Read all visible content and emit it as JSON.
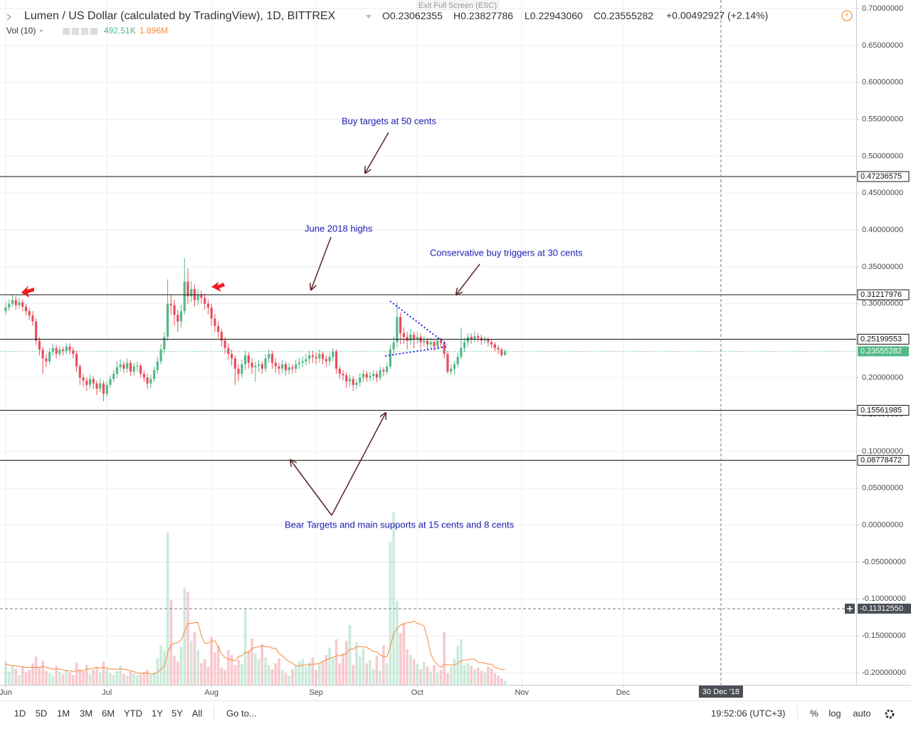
{
  "header": {
    "symbol": "Lumen / US Dollar (calculated by TradingView), 1D, BITTREX",
    "ohlc": [
      {
        "label": "O",
        "value": "0.23062355"
      },
      {
        "label": "H",
        "value": "0.23827786"
      },
      {
        "label": "L",
        "value": "0.22943060"
      },
      {
        "label": "C",
        "value": "0.23555282"
      }
    ],
    "change": "+0.00492927 (+2.14%)",
    "volume_label": "Vol (10)",
    "volume": "492.51K",
    "volume_ma": "1.896M",
    "exit": "Exit Full Screen (ESC)"
  },
  "chart_data": {
    "type": "candlestick",
    "x": [
      0,
      1,
      2,
      3,
      4,
      5,
      6,
      7,
      8,
      9,
      10,
      11,
      12,
      13,
      14,
      15,
      16,
      17,
      18,
      19,
      20,
      21,
      22,
      23,
      24,
      25,
      26,
      27,
      28,
      29,
      30,
      31,
      32,
      33,
      34,
      35,
      36,
      37,
      38,
      39,
      40,
      41,
      42,
      43,
      44,
      45,
      46,
      47,
      48,
      49,
      50,
      51,
      52,
      53,
      54,
      55,
      56,
      57,
      58,
      59,
      60,
      61,
      62,
      63,
      64,
      65,
      66,
      67,
      68,
      69,
      70,
      71,
      72,
      73,
      74,
      75,
      76,
      77,
      78,
      79,
      80,
      81,
      82,
      83,
      84,
      85,
      86,
      87,
      88,
      89,
      90,
      91,
      92,
      93,
      94,
      95,
      96,
      97,
      98,
      99,
      100,
      101,
      102,
      103,
      104,
      105,
      106,
      107,
      108,
      109,
      110,
      111,
      112,
      113,
      114,
      115,
      116,
      117,
      118,
      119,
      120,
      121,
      122,
      123,
      124,
      125,
      126,
      127,
      128,
      129,
      130,
      131,
      132,
      133,
      134,
      135,
      136,
      137,
      138,
      139,
      140,
      141,
      142,
      143,
      144,
      145,
      146,
      147,
      148
    ],
    "open": [
      0.29,
      0.295,
      0.3,
      0.305,
      0.298,
      0.302,
      0.296,
      0.29,
      0.284,
      0.276,
      0.25,
      0.238,
      0.226,
      0.222,
      0.235,
      0.24,
      0.232,
      0.238,
      0.236,
      0.242,
      0.237,
      0.232,
      0.215,
      0.2,
      0.196,
      0.19,
      0.198,
      0.192,
      0.185,
      0.192,
      0.178,
      0.19,
      0.198,
      0.205,
      0.214,
      0.218,
      0.212,
      0.22,
      0.208,
      0.215,
      0.216,
      0.205,
      0.2,
      0.192,
      0.198,
      0.21,
      0.222,
      0.238,
      0.255,
      0.3,
      0.298,
      0.285,
      0.276,
      0.29,
      0.33,
      0.31,
      0.32,
      0.305,
      0.312,
      0.308,
      0.3,
      0.295,
      0.28,
      0.27,
      0.262,
      0.25,
      0.24,
      0.232,
      0.226,
      0.212,
      0.205,
      0.218,
      0.23,
      0.22,
      0.214,
      0.216,
      0.218,
      0.212,
      0.226,
      0.232,
      0.22,
      0.215,
      0.212,
      0.218,
      0.21,
      0.214,
      0.212,
      0.218,
      0.22,
      0.222,
      0.225,
      0.23,
      0.228,
      0.226,
      0.232,
      0.225,
      0.222,
      0.228,
      0.235,
      0.212,
      0.205,
      0.203,
      0.195,
      0.198,
      0.19,
      0.193,
      0.2,
      0.205,
      0.2,
      0.202,
      0.205,
      0.2,
      0.21,
      0.208,
      0.215,
      0.238,
      0.248,
      0.282,
      0.26,
      0.255,
      0.25,
      0.258,
      0.252,
      0.255,
      0.248,
      0.25,
      0.245,
      0.248,
      0.242,
      0.25,
      0.247,
      0.232,
      0.208,
      0.212,
      0.218,
      0.228,
      0.24,
      0.248,
      0.255,
      0.252,
      0.256,
      0.254,
      0.25,
      0.252,
      0.248,
      0.245,
      0.24,
      0.238,
      0.23062355
    ],
    "high": [
      0.302,
      0.306,
      0.312,
      0.31,
      0.308,
      0.306,
      0.3,
      0.294,
      0.29,
      0.28,
      0.255,
      0.242,
      0.232,
      0.24,
      0.246,
      0.244,
      0.243,
      0.242,
      0.247,
      0.246,
      0.241,
      0.236,
      0.218,
      0.205,
      0.2,
      0.204,
      0.202,
      0.196,
      0.198,
      0.196,
      0.195,
      0.203,
      0.21,
      0.222,
      0.225,
      0.222,
      0.226,
      0.224,
      0.22,
      0.222,
      0.219,
      0.21,
      0.205,
      0.204,
      0.215,
      0.228,
      0.245,
      0.262,
      0.333,
      0.312,
      0.305,
      0.292,
      0.298,
      0.362,
      0.348,
      0.33,
      0.326,
      0.32,
      0.318,
      0.314,
      0.306,
      0.3,
      0.286,
      0.276,
      0.266,
      0.255,
      0.246,
      0.238,
      0.23,
      0.218,
      0.224,
      0.236,
      0.234,
      0.226,
      0.222,
      0.224,
      0.222,
      0.232,
      0.238,
      0.236,
      0.226,
      0.22,
      0.224,
      0.222,
      0.22,
      0.218,
      0.224,
      0.226,
      0.228,
      0.232,
      0.236,
      0.236,
      0.234,
      0.238,
      0.236,
      0.23,
      0.234,
      0.24,
      0.238,
      0.216,
      0.21,
      0.207,
      0.204,
      0.202,
      0.198,
      0.206,
      0.21,
      0.209,
      0.208,
      0.21,
      0.209,
      0.215,
      0.214,
      0.22,
      0.244,
      0.256,
      0.302,
      0.288,
      0.268,
      0.262,
      0.266,
      0.262,
      0.262,
      0.26,
      0.256,
      0.254,
      0.254,
      0.252,
      0.255,
      0.254,
      0.25,
      0.236,
      0.218,
      0.222,
      0.234,
      0.268,
      0.254,
      0.26,
      0.26,
      0.262,
      0.26,
      0.258,
      0.256,
      0.255,
      0.252,
      0.248,
      0.244,
      0.24,
      0.23827786
    ],
    "low": [
      0.285,
      0.29,
      0.296,
      0.292,
      0.293,
      0.29,
      0.284,
      0.278,
      0.27,
      0.244,
      0.23,
      0.205,
      0.214,
      0.218,
      0.23,
      0.226,
      0.228,
      0.23,
      0.232,
      0.231,
      0.226,
      0.208,
      0.19,
      0.188,
      0.182,
      0.185,
      0.184,
      0.176,
      0.18,
      0.168,
      0.174,
      0.186,
      0.194,
      0.2,
      0.208,
      0.206,
      0.207,
      0.202,
      0.203,
      0.208,
      0.2,
      0.194,
      0.185,
      0.186,
      0.194,
      0.205,
      0.218,
      0.232,
      0.25,
      0.285,
      0.27,
      0.262,
      0.268,
      0.285,
      0.3,
      0.302,
      0.296,
      0.298,
      0.3,
      0.292,
      0.286,
      0.27,
      0.262,
      0.254,
      0.242,
      0.232,
      0.224,
      0.216,
      0.19,
      0.195,
      0.2,
      0.21,
      0.212,
      0.205,
      0.194,
      0.208,
      0.205,
      0.208,
      0.22,
      0.212,
      0.206,
      0.204,
      0.206,
      0.203,
      0.204,
      0.205,
      0.206,
      0.212,
      0.214,
      0.216,
      0.218,
      0.22,
      0.218,
      0.22,
      0.218,
      0.214,
      0.216,
      0.222,
      0.205,
      0.198,
      0.196,
      0.186,
      0.188,
      0.182,
      0.184,
      0.188,
      0.194,
      0.194,
      0.195,
      0.196,
      0.194,
      0.196,
      0.202,
      0.204,
      0.212,
      0.23,
      0.24,
      0.245,
      0.246,
      0.238,
      0.244,
      0.24,
      0.246,
      0.24,
      0.242,
      0.238,
      0.24,
      0.236,
      0.238,
      0.24,
      0.226,
      0.205,
      0.204,
      0.204,
      0.214,
      0.225,
      0.234,
      0.242,
      0.246,
      0.248,
      0.248,
      0.244,
      0.246,
      0.242,
      0.24,
      0.236,
      0.232,
      0.228,
      0.2294306
    ],
    "close": [
      0.295,
      0.3,
      0.305,
      0.298,
      0.302,
      0.296,
      0.29,
      0.284,
      0.276,
      0.25,
      0.238,
      0.226,
      0.222,
      0.235,
      0.24,
      0.232,
      0.238,
      0.236,
      0.242,
      0.237,
      0.232,
      0.215,
      0.2,
      0.196,
      0.19,
      0.198,
      0.192,
      0.185,
      0.192,
      0.178,
      0.19,
      0.198,
      0.205,
      0.214,
      0.218,
      0.212,
      0.22,
      0.208,
      0.215,
      0.216,
      0.205,
      0.2,
      0.192,
      0.198,
      0.21,
      0.222,
      0.238,
      0.255,
      0.3,
      0.298,
      0.285,
      0.276,
      0.29,
      0.33,
      0.31,
      0.32,
      0.305,
      0.312,
      0.308,
      0.3,
      0.295,
      0.28,
      0.27,
      0.262,
      0.25,
      0.24,
      0.232,
      0.226,
      0.212,
      0.205,
      0.218,
      0.23,
      0.22,
      0.214,
      0.216,
      0.218,
      0.212,
      0.226,
      0.232,
      0.22,
      0.215,
      0.212,
      0.218,
      0.21,
      0.214,
      0.212,
      0.218,
      0.22,
      0.222,
      0.225,
      0.23,
      0.228,
      0.226,
      0.232,
      0.225,
      0.222,
      0.228,
      0.235,
      0.212,
      0.205,
      0.203,
      0.195,
      0.198,
      0.19,
      0.193,
      0.2,
      0.205,
      0.2,
      0.202,
      0.205,
      0.2,
      0.21,
      0.208,
      0.215,
      0.238,
      0.248,
      0.282,
      0.26,
      0.255,
      0.25,
      0.258,
      0.252,
      0.255,
      0.248,
      0.25,
      0.245,
      0.248,
      0.242,
      0.25,
      0.247,
      0.232,
      0.208,
      0.212,
      0.218,
      0.228,
      0.24,
      0.248,
      0.255,
      0.252,
      0.256,
      0.254,
      0.25,
      0.252,
      0.248,
      0.245,
      0.24,
      0.238,
      0.2306,
      0.23555282
    ],
    "volume": [
      2800000,
      1600000,
      2400000,
      1900000,
      1200000,
      2200000,
      1500000,
      1800000,
      2600000,
      3400000,
      2100000,
      2900000,
      1700000,
      1400000,
      1100000,
      2300000,
      1600000,
      1300000,
      1800000,
      1500000,
      1200000,
      2700000,
      1900000,
      1600000,
      2400000,
      1300000,
      1800000,
      2200000,
      1500000,
      2800000,
      1900000,
      1400000,
      1200000,
      1700000,
      2300000,
      1300000,
      1100000,
      1600000,
      1400000,
      1200000,
      1300000,
      1600000,
      1800000,
      1200000,
      1500000,
      3200000,
      4800000,
      4100000,
      18400000,
      10200000,
      3500000,
      2800000,
      4600000,
      11700000,
      11200000,
      5300000,
      6400000,
      4200000,
      2600000,
      3100000,
      2200000,
      5800000,
      3900000,
      4700000,
      2100000,
      1800000,
      4200000,
      3600000,
      2400000,
      3000000,
      2500000,
      9100000,
      4200000,
      5600000,
      3800000,
      3100000,
      4900000,
      3300000,
      2400000,
      1900000,
      2600000,
      3200000,
      1800000,
      1400000,
      1100000,
      1900000,
      2300000,
      2800000,
      3100000,
      2200000,
      2700000,
      3300000,
      1800000,
      2500000,
      2900000,
      3600000,
      4500000,
      3200000,
      5500000,
      2600000,
      3800000,
      5300000,
      7200000,
      2400000,
      5100000,
      3400000,
      4400000,
      2600000,
      3000000,
      1900000,
      3500000,
      1700000,
      4800000,
      2600000,
      17200000,
      20800000,
      10100000,
      6200000,
      7500000,
      4300000,
      3600000,
      3100000,
      2500000,
      1900000,
      2800000,
      2200000,
      1600000,
      2400000,
      1500000,
      1800000,
      6400000,
      1400000,
      2200000,
      3100000,
      4700000,
      5500000,
      2400000,
      2600000,
      2300000,
      1900000,
      2100000,
      1700000,
      1500000,
      2200000,
      2000000,
      1400000,
      1100000,
      800000,
      492510
    ],
    "volume_ma": [
      2500000,
      2400000,
      2300000,
      2300000,
      2200000,
      2200000,
      2100000,
      2100000,
      2100000,
      2100000,
      2100000,
      2200000,
      2100000,
      2000000,
      1900000,
      1900000,
      1900000,
      1800000,
      1700000,
      1700000,
      1600000,
      1700000,
      1700000,
      1700000,
      1900000,
      1900000,
      2000000,
      2100000,
      2000000,
      2100000,
      2000000,
      1900000,
      1900000,
      1900000,
      1900000,
      1900000,
      1800000,
      1700000,
      1600000,
      1400000,
      1400000,
      1400000,
      1400000,
      1300000,
      1300000,
      1500000,
      1900000,
      2200000,
      3900000,
      4800000,
      5000000,
      5100000,
      5400000,
      6400000,
      7400000,
      7400000,
      7500000,
      7500000,
      5900000,
      5000000,
      5000000,
      5300000,
      5300000,
      4600000,
      3700000,
      3300000,
      3100000,
      3000000,
      2900000,
      3400000,
      3500000,
      3900000,
      3900000,
      4400000,
      4500000,
      4600000,
      4700000,
      4600000,
      4600000,
      4400000,
      4400000,
      3800000,
      3500000,
      3100000,
      2800000,
      2600000,
      2300000,
      2300000,
      2400000,
      2400000,
      2400000,
      2500000,
      2500000,
      2600000,
      2800000,
      3000000,
      3200000,
      3300000,
      3500000,
      3500000,
      3600000,
      3800000,
      4300000,
      4300000,
      4600000,
      4600000,
      4600000,
      4500000,
      4300000,
      4000000,
      4000000,
      3600000,
      3400000,
      3400000,
      4600000,
      6200000,
      6800000,
      7200000,
      7300000,
      7500000,
      7500000,
      7700000,
      7400000,
      7300000,
      7100000,
      5600000,
      3700000,
      2900000,
      2400000,
      2100000,
      2500000,
      2400000,
      2400000,
      2400000,
      2600000,
      2900000,
      3000000,
      3000000,
      3100000,
      3100000,
      2700000,
      2700000,
      2600000,
      2500000,
      2500000,
      2100000,
      2000000,
      1800000,
      1896000
    ],
    "up_color": "#53b987",
    "down_color": "#eb4d5c",
    "volume_ma_color": "#f5893b",
    "xlim": [
      -1.69,
      252.1
    ],
    "xticks": [
      {
        "value": 0,
        "label": "Jun"
      },
      {
        "value": 30,
        "label": "Jul"
      },
      {
        "value": 61,
        "label": "Aug"
      },
      {
        "value": 92,
        "label": "Sep"
      },
      {
        "value": 122,
        "label": "Oct"
      },
      {
        "value": 153,
        "label": "Nov"
      },
      {
        "value": 183,
        "label": "Dec"
      }
    ],
    "ylim": [
      -0.2164,
      0.7116
    ],
    "yticks": [
      {
        "value": 0.7,
        "label": "0.70000000"
      },
      {
        "value": 0.65,
        "label": "0.65000000"
      },
      {
        "value": 0.6,
        "label": "0.60000000"
      },
      {
        "value": 0.55,
        "label": "0.55000000"
      },
      {
        "value": 0.5,
        "label": "0.50000000"
      },
      {
        "value": 0.45,
        "label": "0.45000000"
      },
      {
        "value": 0.4,
        "label": "0.40000000"
      },
      {
        "value": 0.35,
        "label": "0.35000000"
      },
      {
        "value": 0.3,
        "label": "0.30000000"
      },
      {
        "value": 0.25,
        "label": "0.25000000"
      },
      {
        "value": 0.2,
        "label": "0.20000000"
      },
      {
        "value": 0.15,
        "label": "0.15000000"
      },
      {
        "value": 0.1,
        "label": "0.10000000"
      },
      {
        "value": 0.05,
        "label": "0.05000000"
      },
      {
        "value": 0,
        "label": "0.00000000"
      },
      {
        "value": -0.05,
        "label": "-0.05000000"
      },
      {
        "value": -0.1,
        "label": "-0.10000000"
      },
      {
        "value": -0.15,
        "label": "-0.15000000"
      },
      {
        "value": -0.2,
        "label": "-0.20000000"
      }
    ],
    "y2lim": [
      0,
      24000000
    ],
    "grid": true,
    "hlines": [
      0.47236575,
      0.31217976,
      0.25199553,
      0.15561985,
      0.08778472
    ],
    "last_price": 0.23555282,
    "crosshair_x": {
      "value": 212,
      "label": "30 Dec '18"
    },
    "crosshair_y": {
      "value": -0.1131255,
      "label": "-0.11312550"
    },
    "annotations": [
      "Buy targets at 50 cents",
      "June 2018 highs",
      "Conservative buy triggers at 30 cents",
      "Bear Targets and main supports at 15 cents and 8 cents"
    ]
  },
  "toolbar": {
    "ranges": [
      "1D",
      "5D",
      "1M",
      "3M",
      "6M",
      "YTD",
      "1Y",
      "5Y",
      "All"
    ],
    "goto": "Go to...",
    "clock": "19:52:06 (UTC+3)",
    "options": [
      "%",
      "log",
      "auto"
    ]
  }
}
